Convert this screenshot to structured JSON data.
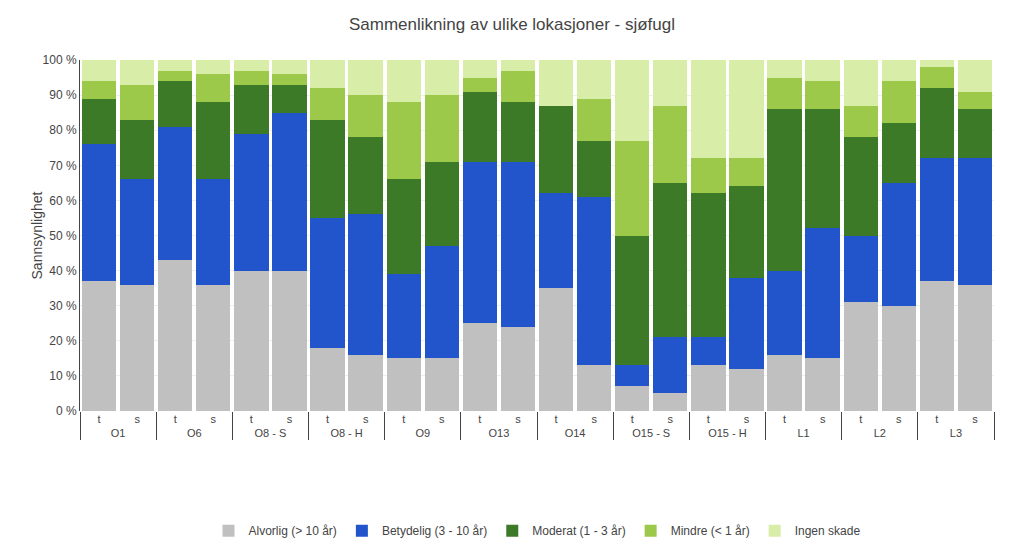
{
  "chart_data": {
    "type": "bar",
    "stacked": true,
    "title": "Sammenlikning av ulike lokasjoner - sjøfugl",
    "ylabel": "Sannsynlighet",
    "categories": [
      [
        "O1",
        "t"
      ],
      [
        "O1",
        "s"
      ],
      [
        "O6",
        "t"
      ],
      [
        "O6",
        "s"
      ],
      [
        "O8 - S",
        "t"
      ],
      [
        "O8 - S",
        "s"
      ],
      [
        "O8 - H",
        "t"
      ],
      [
        "O8 - H",
        "s"
      ],
      [
        "O9",
        "t"
      ],
      [
        "O9",
        "s"
      ],
      [
        "O13",
        "t"
      ],
      [
        "O13",
        "s"
      ],
      [
        "O14",
        "t"
      ],
      [
        "O14",
        "s"
      ],
      [
        "O15 - S",
        "t"
      ],
      [
        "O15 - S",
        "s"
      ],
      [
        "O15 - H",
        "t"
      ],
      [
        "O15 - H",
        "s"
      ],
      [
        "L1",
        "t"
      ],
      [
        "L1",
        "s"
      ],
      [
        "L2",
        "t"
      ],
      [
        "L2",
        "s"
      ],
      [
        "L3",
        "t"
      ],
      [
        "L3",
        "s"
      ]
    ],
    "series": [
      {
        "name": "Alvorlig (> 10 år)",
        "color": "#C0C0C0",
        "values": [
          37,
          36,
          43,
          36,
          40,
          40,
          18,
          16,
          15,
          15,
          25,
          24,
          35,
          13,
          7,
          5,
          13,
          12,
          16,
          15,
          31,
          30,
          37,
          36
        ]
      },
      {
        "name": "Betydelig (3 - 10 år)",
        "color": "#2255CC",
        "values": [
          39,
          30,
          38,
          30,
          39,
          45,
          37,
          40,
          24,
          32,
          46,
          47,
          27,
          48,
          6,
          16,
          8,
          26,
          24,
          37,
          19,
          35,
          35,
          36
        ]
      },
      {
        "name": "Moderat (1 - 3 år)",
        "color": "#3D7A28",
        "values": [
          13,
          17,
          13,
          22,
          14,
          8,
          28,
          22,
          27,
          24,
          20,
          17,
          25,
          16,
          37,
          44,
          41,
          26,
          46,
          34,
          28,
          17,
          20,
          14
        ]
      },
      {
        "name": "Mindre (< 1 år)",
        "color": "#9DC94A",
        "values": [
          5,
          10,
          3,
          8,
          4,
          3,
          9,
          12,
          22,
          19,
          4,
          9,
          0,
          12,
          27,
          22,
          10,
          8,
          9,
          8,
          9,
          12,
          6,
          5
        ]
      },
      {
        "name": "Ingen skade",
        "color": "#D8EDA8",
        "values": [
          6,
          7,
          3,
          4,
          3,
          4,
          8,
          10,
          12,
          10,
          5,
          3,
          13,
          11,
          23,
          13,
          28,
          28,
          5,
          6,
          13,
          6,
          2,
          9
        ]
      }
    ],
    "ylim": [
      0,
      100
    ],
    "yticks": [
      {
        "value": 0,
        "label": "0 %"
      },
      {
        "value": 10,
        "label": "10 %"
      },
      {
        "value": 20,
        "label": "20 %"
      },
      {
        "value": 30,
        "label": "30 %"
      },
      {
        "value": 40,
        "label": "40 %"
      },
      {
        "value": 50,
        "label": "50 %"
      },
      {
        "value": 60,
        "label": "60 %"
      },
      {
        "value": 70,
        "label": "70 %"
      },
      {
        "value": 80,
        "label": "80 %"
      },
      {
        "value": 90,
        "label": "90 %"
      },
      {
        "value": 100,
        "label": "100 %"
      }
    ],
    "grid": true,
    "legend": "bottom"
  }
}
